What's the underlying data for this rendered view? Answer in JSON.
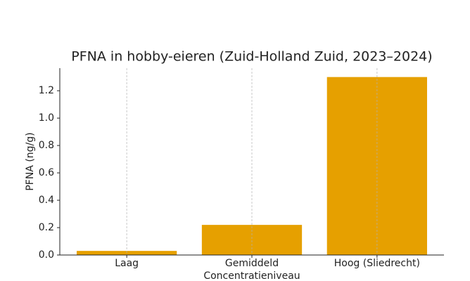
{
  "chart_data": {
    "type": "bar",
    "title": "PFNA in hobby-eieren (Zuid-Holland Zuid, 2023–2024)",
    "x_label": "Concentratieniveau",
    "y_label": "PFNA (ng/g)",
    "categories": [
      "Laag",
      "Gemiddeld",
      "Hoog (Sliedrecht)"
    ],
    "values": [
      0.03,
      0.22,
      1.3
    ],
    "color": "#e6a000",
    "ylim": [
      0,
      1.365
    ],
    "yticks": [
      {
        "value": 0,
        "label": "0.0"
      },
      0.2,
      0.4,
      0.6,
      0.8,
      {
        "value": 1,
        "label": "1.0"
      },
      1.2
    ],
    "grid": "x"
  }
}
